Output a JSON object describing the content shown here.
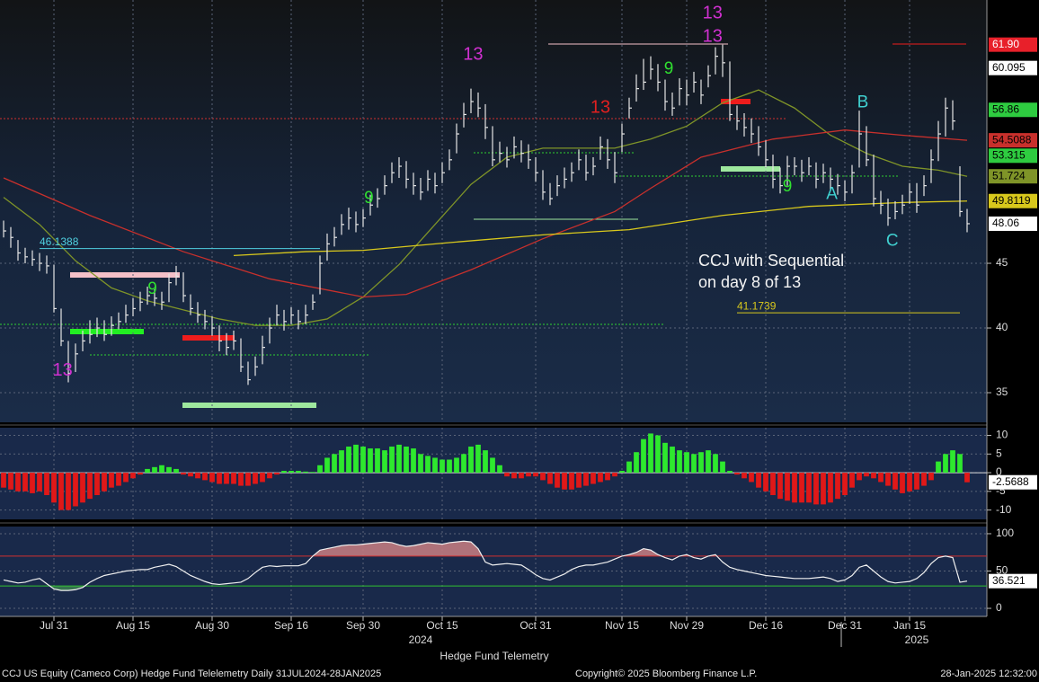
{
  "panel_title": "Hedge Fund Telemetry",
  "footer": {
    "left": "CCJ US Equity (Cameco Corp) Hedge Fund Telelemetry  Daily 31JUL2024-28JAN2025",
    "center": "Copyright© 2025 Bloomberg Finance L.P.",
    "right": "28-Jan-2025 12:32:00"
  },
  "chart_data": [
    {
      "type": "ohlc",
      "color": "#e6e6e6",
      "xlim": [
        -0.5,
        136.75
      ],
      "ylim": [
        32.71,
        65.35
      ],
      "yticks": [
        35,
        40,
        45
      ],
      "grid": true,
      "high": [
        48.3,
        47.8,
        46.8,
        46.2,
        46,
        45.8,
        45.6,
        44.9,
        41.5,
        39,
        38.8,
        39.8,
        40.6,
        40.8,
        40.6,
        40.9,
        41.2,
        41.8,
        42.3,
        42.8,
        43.2,
        43,
        42.8,
        44.2,
        44.8,
        44.3,
        42.6,
        42,
        41.4,
        40.9,
        40.2,
        39.6,
        39.8,
        39.2,
        37.4,
        37.8,
        39.4,
        40.8,
        41.8,
        41.4,
        41.6,
        41.4,
        41.8,
        42.6,
        45.6,
        47.3,
        47.8,
        48.8,
        49.3,
        49,
        49.2,
        50.3,
        50.8,
        51.8,
        52.8,
        53.2,
        52.9,
        52,
        51.6,
        52.2,
        52,
        52.8,
        53.8,
        55.8,
        57.4,
        58.5,
        58.2,
        57.3,
        55.6,
        54.4,
        54,
        54.8,
        54.5,
        54.2,
        53.2,
        52.2,
        51.2,
        51.8,
        52.4,
        52.8,
        53.8,
        53.4,
        53.2,
        54.8,
        54.6,
        53.6,
        55.8,
        57.8,
        59.6,
        60.8,
        61,
        60.4,
        59.2,
        58.2,
        59.3,
        59.2,
        59.8,
        59.2,
        60.3,
        61.7,
        61.9,
        60.6,
        57.2,
        56.6,
        56.2,
        55.6,
        54.5,
        53.4,
        52.4,
        53.3,
        53.2,
        53,
        53.2,
        52.8,
        52.7,
        52.4,
        51.9,
        51.4,
        52.6,
        56.8,
        55.6,
        53.4,
        50.6,
        50,
        49.8,
        50.3,
        51.2,
        51.2,
        51.8,
        53.8,
        56,
        57.8,
        57.6,
        52.5,
        49.2
      ],
      "low": [
        47,
        46.2,
        45.2,
        45,
        44.8,
        44.4,
        44.2,
        41.2,
        38.6,
        35.8,
        36.6,
        38.2,
        38.8,
        39.3,
        39,
        39.4,
        39.9,
        40.4,
        40.9,
        41.3,
        41.8,
        41.7,
        41.4,
        42,
        43.3,
        42,
        41,
        40.4,
        39.9,
        39.4,
        38.2,
        37.9,
        38.3,
        36.6,
        35.6,
        36.3,
        37.2,
        38.8,
        40.2,
        39.8,
        40.3,
        39.9,
        40.3,
        41.4,
        42.6,
        45.2,
        46.3,
        47.2,
        47.6,
        47.4,
        47.8,
        48.7,
        49.3,
        50.3,
        51.2,
        51.6,
        50.8,
        50.3,
        49.9,
        50.6,
        50.4,
        51.2,
        52.2,
        53.5,
        55.5,
        56.6,
        56.3,
        54.6,
        52.5,
        52.8,
        52.4,
        53.1,
        52.8,
        52.3,
        51.3,
        49.9,
        49.5,
        50.2,
        50.8,
        51.3,
        52.2,
        51.4,
        51.8,
        53,
        52.3,
        51.2,
        53.6,
        56.2,
        57.5,
        58.4,
        59.2,
        58.3,
        56.8,
        56.4,
        57.2,
        57.2,
        58.2,
        57.3,
        58.6,
        59.6,
        59.4,
        56,
        55.3,
        54.8,
        54.3,
        53.3,
        52.4,
        50.8,
        50.4,
        51,
        51.8,
        51.3,
        51.8,
        50.8,
        51.2,
        50.7,
        50.3,
        49.8,
        50.4,
        52.4,
        52.5,
        49.4,
        48.8,
        47.9,
        48.4,
        48.8,
        49.6,
        48.9,
        50.2,
        51.2,
        52.9,
        54.8,
        55.3,
        48.6,
        47.4
      ],
      "close": [
        47.5,
        47,
        45.8,
        45.5,
        45.3,
        45,
        44.8,
        41.5,
        39,
        36.5,
        38,
        39,
        39.5,
        40,
        39.5,
        40.2,
        40.5,
        41,
        41.5,
        42,
        42.5,
        42.3,
        42,
        43.5,
        44,
        42.5,
        41.5,
        41,
        40.5,
        40,
        39,
        38.5,
        39,
        37,
        36,
        37,
        38.5,
        40,
        41,
        40.5,
        41,
        40.5,
        41,
        42,
        45,
        46.5,
        47,
        48,
        48.5,
        48,
        48.5,
        49.5,
        50,
        51,
        52,
        52.5,
        51.5,
        51,
        50.5,
        51.5,
        51,
        52,
        53,
        55,
        56.5,
        57.5,
        57,
        55.5,
        53,
        53.5,
        53,
        54,
        53.5,
        53,
        52,
        50.5,
        50,
        51,
        51.5,
        52,
        53,
        52,
        52.5,
        54,
        53,
        52,
        55,
        57,
        58.5,
        59,
        60,
        59,
        57.5,
        57,
        58.5,
        58,
        59,
        58,
        59.5,
        61,
        60.5,
        56.5,
        56,
        55.5,
        55,
        54,
        53,
        51.5,
        51,
        52.5,
        52.5,
        52,
        52.5,
        51.5,
        52,
        51.5,
        51,
        50.5,
        52,
        55,
        53,
        50,
        49.5,
        48.5,
        49,
        49.5,
        50.5,
        49.5,
        51,
        53,
        55,
        57,
        56,
        49,
        48.06
      ],
      "overlays": [
        {
          "color": "#7f9428",
          "x": [
            0,
            5,
            10,
            15,
            20,
            25,
            30,
            35,
            40,
            45,
            50,
            55,
            60,
            65,
            70,
            75,
            80,
            85,
            90,
            95,
            100,
            105,
            110,
            115,
            120,
            125,
            130,
            134
          ],
          "values": [
            50.1,
            48,
            45.2,
            43.1,
            42.1,
            41.4,
            40.7,
            40.2,
            40.2,
            40.7,
            42.4,
            44.9,
            48,
            51.1,
            53.2,
            53.9,
            53.9,
            53.9,
            54.6,
            55.6,
            57.4,
            58.4,
            57,
            54.9,
            53.5,
            52.5,
            52.2,
            51.724
          ]
        },
        {
          "color": "#c8302c",
          "x": [
            0,
            12,
            25,
            37,
            50,
            56,
            65,
            75,
            85,
            90,
            97,
            107,
            117,
            125,
            134
          ],
          "values": [
            51.6,
            48.7,
            45.9,
            43.8,
            42.4,
            42.6,
            44.5,
            46.9,
            49,
            50.8,
            53.2,
            54.6,
            55.3,
            54.9,
            54.5088
          ]
        },
        {
          "color": "#d8c81c",
          "x": [
            32,
            42,
            50,
            62,
            75,
            87,
            100,
            112,
            125,
            134
          ],
          "values": [
            45.6,
            45.9,
            46,
            46.6,
            47.2,
            47.6,
            48.7,
            49.4,
            49.7,
            49.8119
          ]
        }
      ],
      "levels": [
        {
          "value": 46.1388,
          "from": 5,
          "to": 44,
          "color": "#4fd0e0"
        },
        {
          "value": 41.1739,
          "from": 102,
          "to": 133,
          "color": "#d8c81c"
        }
      ],
      "price_tags": [
        {
          "value": 61.9,
          "label": "61.90",
          "bg": "#e8202a",
          "fg": "#ffffff"
        },
        {
          "value": 60.095,
          "bg": "#ffffff",
          "fg": "#000000"
        },
        {
          "value": 56.86,
          "bg": "#2ecc40",
          "fg": "#000000"
        },
        {
          "value": 53.315,
          "bg": "#2ecc40",
          "fg": "#000000"
        }
      ],
      "annotations": [
        {
          "text": "13",
          "x": 8.2,
          "y": 36.7,
          "color": "#d030d0"
        },
        {
          "text": "9",
          "x": 20.7,
          "y": 43,
          "color": "#30e030"
        },
        {
          "text": "9",
          "x": 50.8,
          "y": 50,
          "color": "#30e030"
        },
        {
          "text": "13",
          "x": 65.3,
          "y": 61.1,
          "color": "#d030d0"
        },
        {
          "text": "13",
          "x": 83,
          "y": 57,
          "color": "#e02020"
        },
        {
          "text": "9",
          "x": 92.5,
          "y": 60,
          "color": "#30e030"
        },
        {
          "text": "13",
          "x": 98.6,
          "y": 64.3,
          "color": "#d030d0"
        },
        {
          "text": "13",
          "x": 98.6,
          "y": 62.5,
          "color": "#d030d0"
        },
        {
          "text": "9",
          "x": 109,
          "y": 50.9,
          "color": "#30e030"
        },
        {
          "text": "A",
          "x": 115.2,
          "y": 50.3,
          "color": "#40d0d0"
        },
        {
          "text": "B",
          "x": 119.5,
          "y": 57.4,
          "color": "#40d0d0"
        },
        {
          "text": "C",
          "x": 123.6,
          "y": 46.7,
          "color": "#40d0d0"
        }
      ],
      "notes": [
        "CCJ with Sequential",
        "on day 8 of 13"
      ]
    },
    {
      "type": "bar",
      "colors": {
        "positive": "#2ee82e",
        "negative": "#e01818"
      },
      "xlim": [
        -0.5,
        136.75
      ],
      "ylim": [
        -12.5,
        12.05
      ],
      "yticks": [
        10,
        5,
        0,
        -5,
        -10
      ],
      "values": [
        -4,
        -4.5,
        -5,
        -5,
        -5.5,
        -5,
        -6,
        -8,
        -10,
        -10,
        -9,
        -8,
        -7,
        -6,
        -5,
        -4,
        -3.5,
        -2.5,
        -1.5,
        -0.5,
        1,
        1.5,
        2,
        1.5,
        1,
        -0.5,
        -1,
        -1.5,
        -2,
        -2.5,
        -3,
        -3,
        -3,
        -3.5,
        -3.5,
        -3,
        -2.5,
        -1.5,
        -0.5,
        0.5,
        0.5,
        0.5,
        0.3,
        0.2,
        2,
        4,
        5,
        6,
        7,
        7.5,
        7,
        6.5,
        6.5,
        6,
        7,
        7.5,
        7,
        6.5,
        5,
        4.5,
        4,
        3.5,
        3.5,
        4,
        5,
        7,
        7.5,
        6,
        4,
        2,
        -1,
        -1.5,
        -1.5,
        -1,
        -1,
        -2,
        -3,
        -4,
        -4.5,
        -4.5,
        -4,
        -3.5,
        -3,
        -2.5,
        -2,
        -1,
        0.5,
        3,
        5.5,
        9,
        10.5,
        10,
        8,
        7,
        6,
        5.5,
        5,
        5.5,
        6,
        5,
        3,
        0.5,
        -0.5,
        -1.5,
        -2.5,
        -4,
        -5,
        -6,
        -7,
        -7.5,
        -8,
        -8,
        -8,
        -8.5,
        -8.5,
        -8,
        -7,
        -6,
        -4,
        -2,
        -1,
        -1.5,
        -2.5,
        -3.5,
        -4.5,
        -5.5,
        -5,
        -4.5,
        -3.5,
        -2,
        3,
        5,
        6,
        5,
        -2.5688
      ]
    },
    {
      "type": "line",
      "color": "#f0f0f0",
      "xlim": [
        -0.5,
        136.75
      ],
      "ylim": [
        -10.8,
        109.6
      ],
      "yticks": [
        100,
        50,
        0
      ],
      "overbought": {
        "value": 70,
        "color": "#d03030",
        "fill": "#c07a80"
      },
      "oversold": {
        "value": 30,
        "color": "#30c030",
        "fill": "#3a7a50"
      },
      "values": [
        38,
        36,
        34,
        35,
        38,
        40,
        33,
        26,
        24,
        24,
        25,
        28,
        35,
        40,
        44,
        46,
        48,
        50,
        51,
        52,
        52,
        55,
        57,
        59,
        56,
        50,
        44,
        40,
        36,
        33,
        32,
        33,
        34,
        35,
        40,
        48,
        55,
        57,
        56,
        57,
        57,
        57,
        60,
        70,
        78,
        80,
        82,
        84,
        85,
        85,
        86,
        87,
        88,
        89,
        88,
        85,
        83,
        84,
        86,
        88,
        87,
        86,
        88,
        89,
        90,
        89,
        80,
        62,
        58,
        59,
        60,
        59,
        58,
        52,
        45,
        40,
        38,
        42,
        46,
        52,
        56,
        58,
        58,
        60,
        62,
        66,
        70,
        72,
        75,
        80,
        78,
        72,
        68,
        65,
        70,
        72,
        68,
        66,
        70,
        72,
        62,
        55,
        52,
        50,
        48,
        46,
        44,
        43,
        42,
        41,
        40,
        40,
        40,
        41,
        42,
        40,
        36,
        38,
        44,
        55,
        58,
        50,
        42,
        36,
        34,
        35,
        36,
        40,
        48,
        60,
        68,
        70,
        68,
        35,
        36.521
      ],
      "xticks": [
        {
          "value": 7,
          "label": "Jul 31"
        },
        {
          "value": 18,
          "label": "Aug 15"
        },
        {
          "value": 29,
          "label": "Aug 30"
        },
        {
          "value": 40,
          "label": "Sep 16"
        },
        {
          "value": 50,
          "label": "Sep 30"
        },
        {
          "value": 61,
          "label": "Oct 15"
        },
        {
          "value": 74,
          "label": "Oct 31"
        },
        {
          "value": 86,
          "label": "Nov 15"
        },
        {
          "value": 95,
          "label": "Nov 29"
        },
        {
          "value": 106,
          "label": "Dec 16"
        },
        {
          "value": 117,
          "label": "Dec 31"
        },
        {
          "value": 126,
          "label": "Jan 15"
        }
      ],
      "year_labels": [
        {
          "value": 58,
          "label": "2024"
        },
        {
          "value": 127,
          "label": "2025"
        }
      ]
    }
  ]
}
